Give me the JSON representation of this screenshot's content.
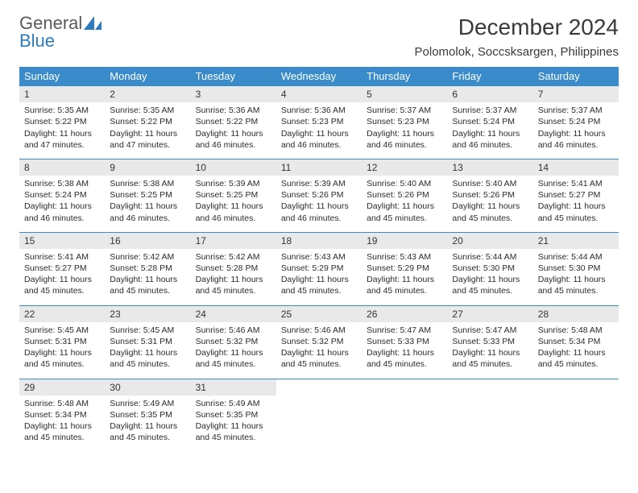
{
  "brand": {
    "word1": "General",
    "word2": "Blue"
  },
  "title": "December 2024",
  "location": "Polomolok, Soccsksargen, Philippines",
  "colors": {
    "accent": "#3a8bc9",
    "header_bg": "#3a8bc9",
    "daynum_bg": "#e9e9e9"
  },
  "weekdays": [
    "Sunday",
    "Monday",
    "Tuesday",
    "Wednesday",
    "Thursday",
    "Friday",
    "Saturday"
  ],
  "days": [
    {
      "n": "1",
      "sr": "5:35 AM",
      "ss": "5:22 PM",
      "dl": "11 hours and 47 minutes."
    },
    {
      "n": "2",
      "sr": "5:35 AM",
      "ss": "5:22 PM",
      "dl": "11 hours and 47 minutes."
    },
    {
      "n": "3",
      "sr": "5:36 AM",
      "ss": "5:22 PM",
      "dl": "11 hours and 46 minutes."
    },
    {
      "n": "4",
      "sr": "5:36 AM",
      "ss": "5:23 PM",
      "dl": "11 hours and 46 minutes."
    },
    {
      "n": "5",
      "sr": "5:37 AM",
      "ss": "5:23 PM",
      "dl": "11 hours and 46 minutes."
    },
    {
      "n": "6",
      "sr": "5:37 AM",
      "ss": "5:24 PM",
      "dl": "11 hours and 46 minutes."
    },
    {
      "n": "7",
      "sr": "5:37 AM",
      "ss": "5:24 PM",
      "dl": "11 hours and 46 minutes."
    },
    {
      "n": "8",
      "sr": "5:38 AM",
      "ss": "5:24 PM",
      "dl": "11 hours and 46 minutes."
    },
    {
      "n": "9",
      "sr": "5:38 AM",
      "ss": "5:25 PM",
      "dl": "11 hours and 46 minutes."
    },
    {
      "n": "10",
      "sr": "5:39 AM",
      "ss": "5:25 PM",
      "dl": "11 hours and 46 minutes."
    },
    {
      "n": "11",
      "sr": "5:39 AM",
      "ss": "5:26 PM",
      "dl": "11 hours and 46 minutes."
    },
    {
      "n": "12",
      "sr": "5:40 AM",
      "ss": "5:26 PM",
      "dl": "11 hours and 45 minutes."
    },
    {
      "n": "13",
      "sr": "5:40 AM",
      "ss": "5:26 PM",
      "dl": "11 hours and 45 minutes."
    },
    {
      "n": "14",
      "sr": "5:41 AM",
      "ss": "5:27 PM",
      "dl": "11 hours and 45 minutes."
    },
    {
      "n": "15",
      "sr": "5:41 AM",
      "ss": "5:27 PM",
      "dl": "11 hours and 45 minutes."
    },
    {
      "n": "16",
      "sr": "5:42 AM",
      "ss": "5:28 PM",
      "dl": "11 hours and 45 minutes."
    },
    {
      "n": "17",
      "sr": "5:42 AM",
      "ss": "5:28 PM",
      "dl": "11 hours and 45 minutes."
    },
    {
      "n": "18",
      "sr": "5:43 AM",
      "ss": "5:29 PM",
      "dl": "11 hours and 45 minutes."
    },
    {
      "n": "19",
      "sr": "5:43 AM",
      "ss": "5:29 PM",
      "dl": "11 hours and 45 minutes."
    },
    {
      "n": "20",
      "sr": "5:44 AM",
      "ss": "5:30 PM",
      "dl": "11 hours and 45 minutes."
    },
    {
      "n": "21",
      "sr": "5:44 AM",
      "ss": "5:30 PM",
      "dl": "11 hours and 45 minutes."
    },
    {
      "n": "22",
      "sr": "5:45 AM",
      "ss": "5:31 PM",
      "dl": "11 hours and 45 minutes."
    },
    {
      "n": "23",
      "sr": "5:45 AM",
      "ss": "5:31 PM",
      "dl": "11 hours and 45 minutes."
    },
    {
      "n": "24",
      "sr": "5:46 AM",
      "ss": "5:32 PM",
      "dl": "11 hours and 45 minutes."
    },
    {
      "n": "25",
      "sr": "5:46 AM",
      "ss": "5:32 PM",
      "dl": "11 hours and 45 minutes."
    },
    {
      "n": "26",
      "sr": "5:47 AM",
      "ss": "5:33 PM",
      "dl": "11 hours and 45 minutes."
    },
    {
      "n": "27",
      "sr": "5:47 AM",
      "ss": "5:33 PM",
      "dl": "11 hours and 45 minutes."
    },
    {
      "n": "28",
      "sr": "5:48 AM",
      "ss": "5:34 PM",
      "dl": "11 hours and 45 minutes."
    },
    {
      "n": "29",
      "sr": "5:48 AM",
      "ss": "5:34 PM",
      "dl": "11 hours and 45 minutes."
    },
    {
      "n": "30",
      "sr": "5:49 AM",
      "ss": "5:35 PM",
      "dl": "11 hours and 45 minutes."
    },
    {
      "n": "31",
      "sr": "5:49 AM",
      "ss": "5:35 PM",
      "dl": "11 hours and 45 minutes."
    }
  ],
  "labels": {
    "sunrise": "Sunrise: ",
    "sunset": "Sunset: ",
    "daylight": "Daylight: "
  }
}
